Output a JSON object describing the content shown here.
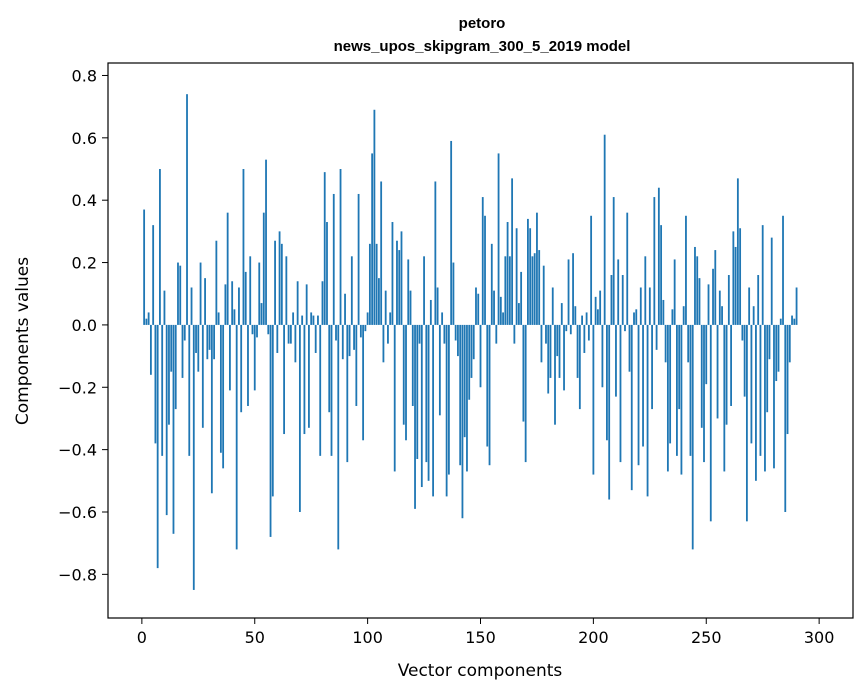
{
  "chart_data": {
    "type": "bar",
    "title_line1": "petoro",
    "title_line2": "news_upos_skipgram_300_5_2019 model",
    "xlabel": "Vector components",
    "ylabel": "Components values",
    "xlim": [
      -15,
      315
    ],
    "ylim": [
      -0.94,
      0.84
    ],
    "xticks": [
      0,
      50,
      100,
      150,
      200,
      250,
      300
    ],
    "xtick_labels": [
      "0",
      "50",
      "100",
      "150",
      "200",
      "250",
      "300"
    ],
    "yticks": [
      -0.8,
      -0.6,
      -0.4,
      -0.2,
      0.0,
      0.2,
      0.4,
      0.6,
      0.8
    ],
    "ytick_labels": [
      "−0.8",
      "−0.6",
      "−0.4",
      "−0.2",
      "0.0",
      "0.2",
      "0.4",
      "0.6",
      "0.8"
    ],
    "bar_color": "#1f77b4",
    "x_start": 1,
    "values": [
      0.37,
      0.02,
      0.04,
      -0.16,
      0.32,
      -0.38,
      -0.78,
      0.5,
      -0.42,
      0.11,
      -0.61,
      -0.32,
      -0.15,
      -0.67,
      -0.27,
      0.2,
      0.19,
      -0.17,
      -0.05,
      0.74,
      -0.42,
      0.12,
      -0.85,
      -0.09,
      -0.15,
      0.2,
      -0.33,
      0.15,
      -0.11,
      -0.08,
      -0.54,
      -0.11,
      0.27,
      0.04,
      -0.41,
      -0.46,
      0.13,
      0.36,
      -0.21,
      0.14,
      0.05,
      -0.72,
      0.12,
      -0.28,
      0.5,
      0.17,
      -0.26,
      0.22,
      -0.03,
      -0.21,
      -0.04,
      0.2,
      0.07,
      0.36,
      0.53,
      -0.03,
      -0.68,
      -0.55,
      0.27,
      -0.09,
      0.3,
      0.26,
      -0.35,
      0.22,
      -0.06,
      -0.06,
      0.04,
      -0.12,
      0.14,
      -0.6,
      0.03,
      -0.35,
      0.13,
      -0.33,
      0.04,
      0.03,
      -0.09,
      0.03,
      -0.42,
      0.14,
      0.49,
      0.33,
      -0.28,
      -0.42,
      0.42,
      -0.05,
      -0.72,
      0.5,
      -0.11,
      0.1,
      -0.44,
      -0.1,
      0.22,
      -0.08,
      -0.26,
      0.42,
      -0.04,
      -0.37,
      -0.02,
      0.04,
      0.26,
      0.55,
      0.69,
      0.26,
      0.15,
      0.46,
      -0.12,
      0.11,
      -0.06,
      0.04,
      0.33,
      -0.47,
      0.27,
      0.24,
      0.3,
      -0.32,
      -0.37,
      0.21,
      0.11,
      -0.26,
      -0.59,
      -0.43,
      -0.06,
      -0.52,
      0.22,
      -0.44,
      -0.5,
      0.08,
      -0.55,
      0.46,
      0.12,
      -0.29,
      0.04,
      -0.06,
      -0.55,
      -0.48,
      0.59,
      0.2,
      -0.05,
      -0.1,
      -0.45,
      -0.62,
      -0.36,
      -0.47,
      -0.24,
      -0.17,
      -0.11,
      0.12,
      0.1,
      -0.2,
      0.41,
      0.35,
      -0.39,
      -0.45,
      0.26,
      0.11,
      -0.06,
      0.55,
      0.09,
      0.04,
      0.22,
      0.33,
      0.22,
      0.47,
      -0.06,
      0.31,
      0.07,
      0.17,
      -0.31,
      -0.44,
      0.34,
      0.31,
      0.22,
      0.23,
      0.36,
      0.24,
      -0.12,
      0.19,
      -0.06,
      -0.22,
      -0.17,
      0.12,
      -0.32,
      -0.1,
      -0.17,
      0.07,
      -0.21,
      -0.02,
      0.21,
      -0.03,
      0.23,
      0.06,
      -0.17,
      -0.27,
      0.03,
      -0.09,
      0.04,
      -0.05,
      0.35,
      -0.48,
      0.09,
      0.05,
      0.11,
      -0.2,
      0.61,
      -0.37,
      -0.56,
      0.16,
      0.41,
      -0.23,
      0.21,
      -0.44,
      0.16,
      -0.02,
      0.36,
      -0.15,
      -0.53,
      0.04,
      0.05,
      -0.45,
      0.12,
      -0.39,
      0.22,
      -0.55,
      0.12,
      -0.27,
      0.41,
      -0.08,
      0.44,
      0.32,
      0.08,
      -0.12,
      -0.47,
      -0.38,
      0.05,
      0.21,
      -0.42,
      -0.27,
      -0.48,
      0.06,
      0.35,
      -0.12,
      -0.42,
      -0.72,
      0.25,
      0.22,
      0.15,
      -0.33,
      -0.44,
      -0.19,
      0.13,
      -0.63,
      0.18,
      0.24,
      -0.3,
      0.11,
      0.06,
      -0.47,
      -0.32,
      0.16,
      -0.26,
      0.3,
      0.25,
      0.47,
      0.31,
      -0.05,
      -0.23,
      -0.63,
      0.12,
      -0.38,
      0.06,
      -0.5,
      0.16,
      -0.42,
      0.32,
      -0.47,
      -0.28,
      -0.11,
      0.28,
      -0.46,
      -0.18,
      -0.15,
      0.02,
      0.35,
      -0.6,
      -0.35,
      -0.12,
      0.03,
      0.02,
      0.12
    ]
  }
}
